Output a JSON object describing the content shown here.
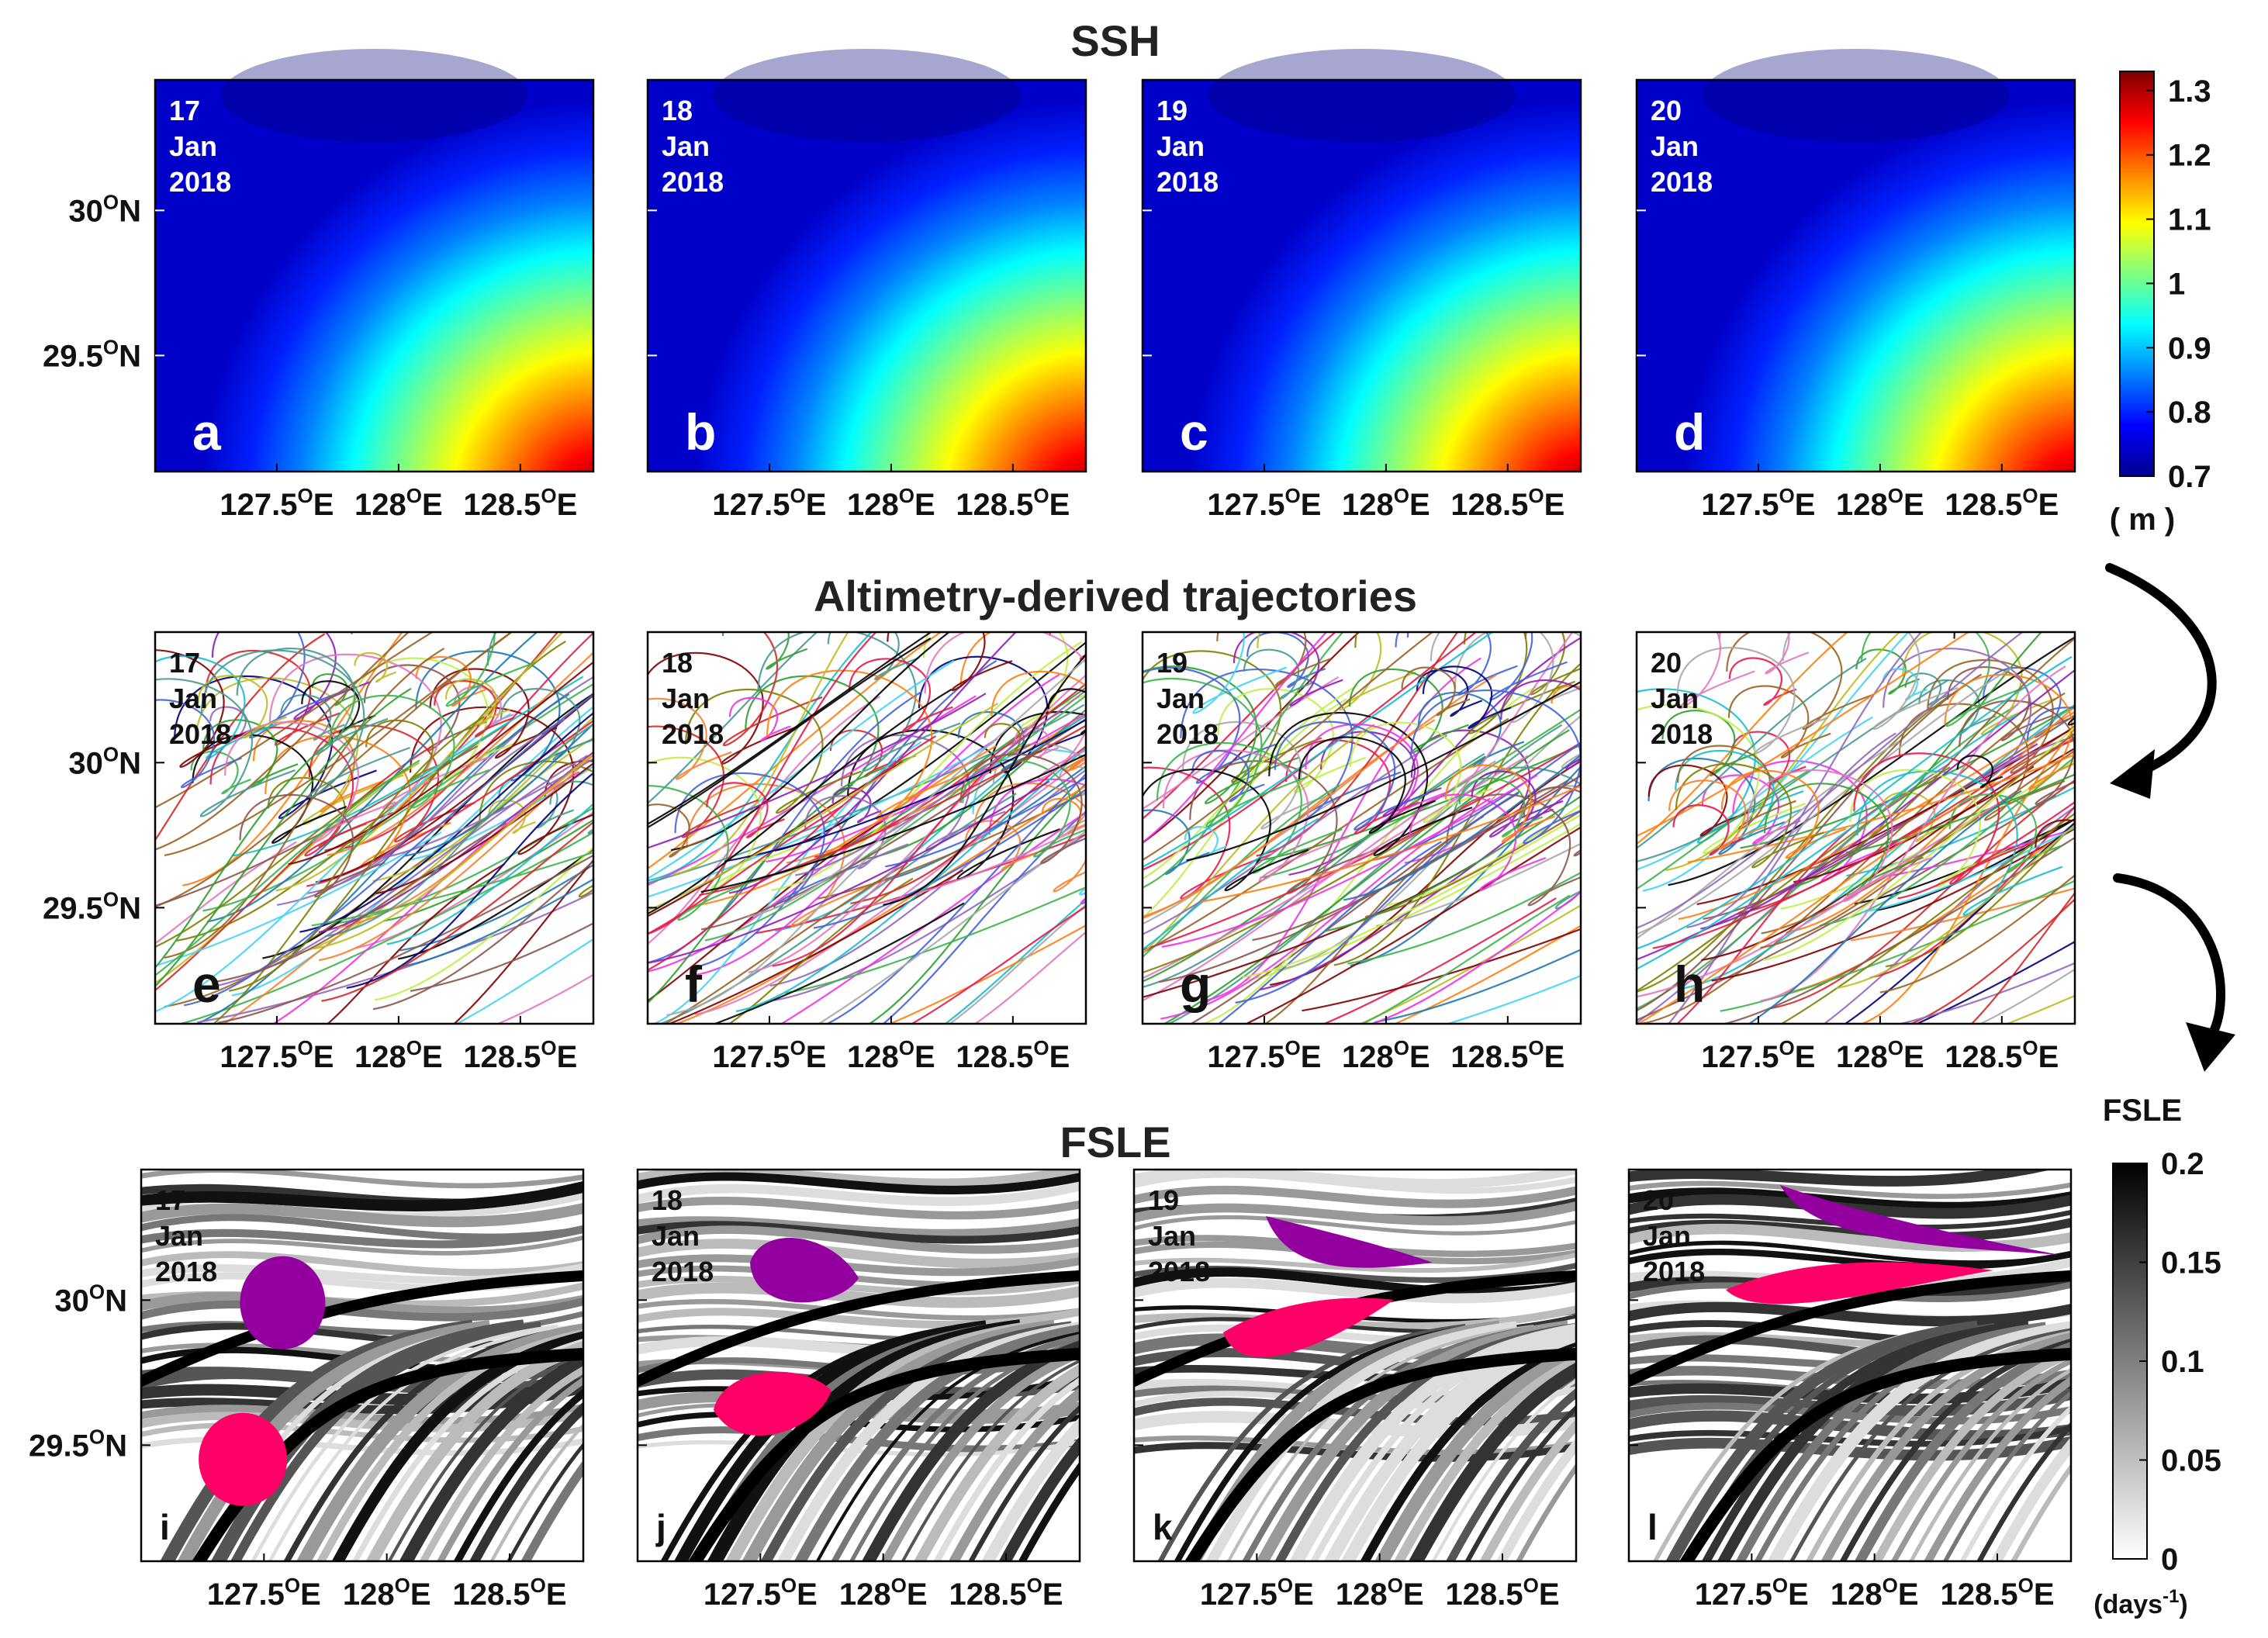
{
  "rows": [
    {
      "title": "SSH"
    },
    {
      "title": "Altimetry-derived trajectories"
    },
    {
      "title": "FSLE"
    }
  ],
  "panels": [
    {
      "letter": "a",
      "day": "17",
      "month": "Jan",
      "year": "2018"
    },
    {
      "letter": "b",
      "day": "18",
      "month": "Jan",
      "year": "2018"
    },
    {
      "letter": "c",
      "day": "19",
      "month": "Jan",
      "year": "2018"
    },
    {
      "letter": "d",
      "day": "20",
      "month": "Jan",
      "year": "2018"
    },
    {
      "letter": "e",
      "day": "17",
      "month": "Jan",
      "year": "2018"
    },
    {
      "letter": "f",
      "day": "18",
      "month": "Jan",
      "year": "2018"
    },
    {
      "letter": "g",
      "day": "19",
      "month": "Jan",
      "year": "2018"
    },
    {
      "letter": "h",
      "day": "20",
      "month": "Jan",
      "year": "2018"
    },
    {
      "letter": "i",
      "day": "17",
      "month": "Jan",
      "year": "2018"
    },
    {
      "letter": "j",
      "day": "18",
      "month": "Jan",
      "year": "2018"
    },
    {
      "letter": "k",
      "day": "19",
      "month": "Jan",
      "year": "2018"
    },
    {
      "letter": "l",
      "day": "20",
      "month": "Jan",
      "year": "2018"
    }
  ],
  "axes": {
    "x_ticks": [
      {
        "value": 127.5,
        "base": "127.5",
        "sup": "O",
        "suffix": "E"
      },
      {
        "value": 128.0,
        "base": "128",
        "sup": "O",
        "suffix": "E"
      },
      {
        "value": 128.5,
        "base": "128.5",
        "sup": "O",
        "suffix": "E"
      }
    ],
    "y_ticks": [
      {
        "value": 30.0,
        "base": "30",
        "sup": "O",
        "suffix": "N"
      },
      {
        "value": 29.5,
        "base": "29.5",
        "sup": "O",
        "suffix": "N"
      }
    ]
  },
  "colorbars": {
    "ssh": {
      "ticks": [
        "1.3",
        "1.2",
        "1.1",
        "1",
        "0.9",
        "0.8",
        "0.7"
      ],
      "tick_values": [
        1.3,
        1.2,
        1.1,
        1.0,
        0.9,
        0.8,
        0.7
      ],
      "range": [
        0.7,
        1.33
      ],
      "unit": "( m )",
      "colors": [
        "#00008f",
        "#0000ff",
        "#0080ff",
        "#00ffff",
        "#80ff80",
        "#ffff00",
        "#ff8000",
        "#ff0000",
        "#800000"
      ]
    },
    "fsle": {
      "label": "FSLE",
      "ticks": [
        "0.2",
        "0.15",
        "0.1",
        "0.05",
        "0"
      ],
      "tick_values": [
        0.2,
        0.15,
        0.1,
        0.05,
        0.0
      ],
      "range": [
        0.0,
        0.2
      ],
      "unit_base": "(days",
      "unit_sup": "-1",
      "unit_close": ")",
      "colors": [
        "#ffffff",
        "#000000"
      ]
    }
  },
  "colors": {
    "patch_purple": "#9400a0",
    "patch_pink": "#ff0066",
    "axis": "#000000",
    "ssh_label_text": "#ffffff",
    "traj_label_text": "#111111",
    "fsle_label_text": "#111111"
  }
}
